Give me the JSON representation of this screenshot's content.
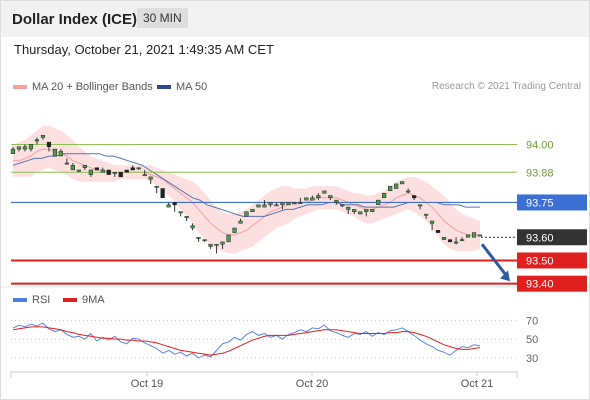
{
  "header": {
    "title": "Dollar Index (ICE)",
    "timeframe": "30 MIN"
  },
  "timestamp": "Thursday, October 21, 2021 1:49:35 AM CET",
  "legend": {
    "bollinger_label": "MA 20 + Bollinger Bands",
    "ma50_label": "MA 50",
    "research": "Research © 2021 Trading Central",
    "colors": {
      "bollinger": "#f08080",
      "ma50": "#2b4b8c"
    }
  },
  "rsi_legend": {
    "rsi_label": "RSI",
    "ma_label": "9MA",
    "colors": {
      "rsi": "#4f7fe0",
      "ma": "#e02020"
    }
  },
  "chart_data": {
    "type": "candlestick",
    "price_range": [
      93.39,
      94.17
    ],
    "x_labels": [
      "Oct 19",
      "Oct 20",
      "Oct 21"
    ],
    "candles": [
      [
        93.96,
        93.96,
        93.98,
        93.99
      ],
      [
        93.98,
        93.97,
        93.99,
        93.98
      ],
      [
        93.98,
        93.97,
        93.99,
        94.0
      ],
      [
        93.98,
        93.97,
        94.0,
        93.99
      ],
      [
        94.02,
        94.0,
        94.02,
        94.03
      ],
      [
        94.03,
        94.02,
        94.04,
        94.03
      ],
      [
        94.01,
        93.97,
        93.99,
        94.01
      ],
      [
        93.95,
        93.96,
        93.98,
        93.97
      ],
      [
        93.95,
        93.95,
        93.97,
        93.98
      ],
      [
        93.92,
        93.93,
        93.92,
        93.94
      ],
      [
        93.89,
        93.9,
        93.91,
        93.92
      ],
      [
        93.89,
        93.88,
        93.89,
        93.89
      ],
      [
        93.9,
        93.89,
        93.91,
        93.89
      ],
      [
        93.87,
        93.86,
        93.89,
        93.88
      ],
      [
        93.9,
        93.89,
        93.89,
        93.89
      ],
      [
        93.88,
        93.88,
        93.89,
        93.9
      ],
      [
        93.89,
        93.88,
        93.87,
        93.89
      ],
      [
        93.88,
        93.86,
        93.88,
        93.88
      ],
      [
        93.88,
        93.86,
        93.86,
        93.88
      ],
      [
        93.89,
        93.89,
        93.88,
        93.89
      ],
      [
        93.9,
        93.91,
        93.89,
        93.9
      ],
      [
        93.9,
        93.89,
        93.9,
        93.89
      ],
      [
        93.87,
        93.87,
        93.87,
        93.89
      ],
      [
        93.85,
        93.83,
        93.86,
        93.85
      ],
      [
        93.82,
        93.79,
        93.82,
        93.8
      ],
      [
        93.81,
        93.78,
        93.77,
        93.79
      ],
      [
        93.73,
        93.73,
        93.74,
        93.75
      ],
      [
        93.75,
        93.71,
        93.74,
        93.72
      ],
      [
        93.71,
        93.69,
        93.71,
        93.7
      ],
      [
        93.69,
        93.67,
        93.69,
        93.68
      ],
      [
        93.64,
        93.63,
        93.65,
        93.66
      ],
      [
        93.6,
        93.58,
        93.6,
        93.6
      ],
      [
        93.59,
        93.58,
        93.59,
        93.58
      ],
      [
        93.56,
        93.55,
        93.57,
        93.57
      ],
      [
        93.57,
        93.53,
        93.57,
        93.56
      ],
      [
        93.57,
        93.55,
        93.58,
        93.56
      ],
      [
        93.58,
        93.59,
        93.61,
        93.6
      ],
      [
        93.62,
        93.63,
        93.64,
        93.63
      ],
      [
        93.66,
        93.67,
        93.67,
        93.68
      ],
      [
        93.69,
        93.69,
        93.71,
        93.7
      ],
      [
        93.71,
        93.71,
        93.72,
        93.72
      ],
      [
        93.73,
        93.73,
        93.74,
        93.74
      ],
      [
        93.73,
        93.74,
        93.74,
        93.76
      ],
      [
        93.74,
        93.73,
        93.75,
        93.74
      ],
      [
        93.74,
        93.74,
        93.74,
        93.75
      ],
      [
        93.74,
        93.72,
        93.75,
        93.73
      ],
      [
        93.74,
        93.74,
        93.75,
        93.74
      ],
      [
        93.75,
        93.75,
        93.75,
        93.75
      ],
      [
        93.75,
        93.75,
        93.75,
        93.77
      ],
      [
        93.76,
        93.76,
        93.77,
        93.77
      ],
      [
        93.76,
        93.76,
        93.77,
        93.78
      ],
      [
        93.77,
        93.76,
        93.78,
        93.79
      ],
      [
        93.79,
        93.8,
        93.8,
        93.8
      ],
      [
        93.77,
        93.76,
        93.78,
        93.78
      ],
      [
        93.75,
        93.74,
        93.76,
        93.76
      ],
      [
        93.74,
        93.73,
        93.74,
        93.74
      ],
      [
        93.72,
        93.7,
        93.73,
        93.71
      ],
      [
        93.71,
        93.7,
        93.72,
        93.71
      ],
      [
        93.7,
        93.7,
        93.71,
        93.71
      ],
      [
        93.71,
        93.69,
        93.72,
        93.7
      ],
      [
        93.71,
        93.71,
        93.72,
        93.72
      ],
      [
        93.74,
        93.76,
        93.76,
        93.76
      ],
      [
        93.77,
        93.79,
        93.79,
        93.78
      ],
      [
        93.8,
        93.8,
        93.82,
        93.81
      ],
      [
        93.81,
        93.82,
        93.83,
        93.82
      ],
      [
        93.83,
        93.83,
        93.84,
        93.84
      ],
      [
        93.8,
        93.79,
        93.8,
        93.81
      ],
      [
        93.78,
        93.76,
        93.77,
        93.78
      ],
      [
        93.74,
        93.72,
        93.74,
        93.73
      ],
      [
        93.7,
        93.68,
        93.7,
        93.7
      ],
      [
        93.66,
        93.63,
        93.67,
        93.66
      ],
      [
        93.63,
        93.62,
        93.62,
        93.63
      ],
      [
        93.59,
        93.59,
        93.6,
        93.6
      ],
      [
        93.59,
        93.59,
        93.58,
        93.59
      ],
      [
        93.58,
        93.57,
        93.58,
        93.6
      ],
      [
        93.59,
        93.59,
        93.59,
        93.6
      ],
      [
        93.6,
        93.6,
        93.61,
        93.61
      ],
      [
        93.6,
        93.61,
        93.62,
        93.62
      ],
      [
        93.61,
        93.61,
        93.61,
        93.61
      ]
    ],
    "bollinger": {
      "mid": [
        93.93,
        93.93,
        93.94,
        93.95,
        93.97,
        93.98,
        93.98,
        93.97,
        93.96,
        93.95,
        93.93,
        93.92,
        93.91,
        93.9,
        93.89,
        93.89,
        93.88,
        93.88,
        93.88,
        93.88,
        93.88,
        93.88,
        93.88,
        93.87,
        93.86,
        93.85,
        93.83,
        93.81,
        93.79,
        93.77,
        93.75,
        93.72,
        93.69,
        93.66,
        93.64,
        93.62,
        93.61,
        93.61,
        93.62,
        93.63,
        93.65,
        93.67,
        93.69,
        93.71,
        93.72,
        93.73,
        93.74,
        93.74,
        93.75,
        93.75,
        93.76,
        93.77,
        93.77,
        93.77,
        93.77,
        93.76,
        93.75,
        93.74,
        93.73,
        93.72,
        93.72,
        93.73,
        93.74,
        93.75,
        93.77,
        93.78,
        93.79,
        93.78,
        93.77,
        93.75,
        93.73,
        93.7,
        93.67,
        93.65,
        93.63,
        93.62,
        93.61,
        93.61,
        93.61
      ],
      "upper": [
        94.0,
        94.01,
        94.02,
        94.04,
        94.06,
        94.08,
        94.08,
        94.07,
        94.06,
        94.04,
        94.02,
        93.99,
        93.97,
        93.95,
        93.94,
        93.93,
        93.92,
        93.91,
        93.91,
        93.91,
        93.91,
        93.91,
        93.91,
        93.91,
        93.9,
        93.89,
        93.88,
        93.87,
        93.86,
        93.85,
        93.84,
        93.82,
        93.79,
        93.76,
        93.73,
        93.71,
        93.7,
        93.7,
        93.71,
        93.72,
        93.74,
        93.76,
        93.78,
        93.8,
        93.81,
        93.82,
        93.82,
        93.81,
        93.81,
        93.81,
        93.82,
        93.82,
        93.82,
        93.82,
        93.82,
        93.81,
        93.8,
        93.79,
        93.79,
        93.78,
        93.78,
        93.79,
        93.8,
        93.82,
        93.84,
        93.85,
        93.86,
        93.86,
        93.85,
        93.84,
        93.82,
        93.8,
        93.78,
        93.75,
        93.72,
        93.7,
        93.69,
        93.68,
        93.67
      ],
      "lower": [
        93.86,
        93.86,
        93.86,
        93.86,
        93.88,
        93.89,
        93.9,
        93.89,
        93.88,
        93.87,
        93.85,
        93.84,
        93.84,
        93.84,
        93.84,
        93.84,
        93.84,
        93.84,
        93.85,
        93.85,
        93.85,
        93.85,
        93.85,
        93.84,
        93.82,
        93.8,
        93.78,
        93.75,
        93.72,
        93.69,
        93.66,
        93.62,
        93.59,
        93.56,
        93.55,
        93.54,
        93.53,
        93.53,
        93.54,
        93.55,
        93.56,
        93.58,
        93.6,
        93.62,
        93.64,
        93.65,
        93.66,
        93.68,
        93.69,
        93.7,
        93.71,
        93.72,
        93.72,
        93.72,
        93.72,
        93.71,
        93.7,
        93.69,
        93.67,
        93.66,
        93.66,
        93.67,
        93.68,
        93.69,
        93.7,
        93.71,
        93.72,
        93.71,
        93.69,
        93.67,
        93.64,
        93.6,
        93.57,
        93.55,
        93.54,
        93.54,
        93.54,
        93.54,
        93.55
      ]
    },
    "ma50": [
      93.91,
      93.92,
      93.93,
      93.94,
      93.94,
      93.95,
      93.95,
      93.96,
      93.96,
      93.96,
      93.96,
      93.96,
      93.96,
      93.95,
      93.95,
      93.94,
      93.93,
      93.92,
      93.91,
      93.89,
      93.87,
      93.85,
      93.83,
      93.81,
      93.79,
      93.77,
      93.76,
      93.74,
      93.73,
      93.72,
      93.71,
      93.7,
      93.69,
      93.69,
      93.69,
      93.69,
      93.7,
      93.71,
      93.72,
      93.72,
      93.73,
      93.74,
      93.74,
      93.74,
      93.75,
      93.75,
      93.74,
      93.74,
      93.74,
      93.73,
      93.73,
      93.73,
      93.73,
      93.73,
      93.74,
      93.75,
      93.75,
      93.75,
      93.75,
      93.75,
      93.74,
      93.74,
      93.74,
      93.73,
      93.73,
      93.73
    ],
    "levels": [
      {
        "value": 94.0,
        "label": "94.00",
        "kind": "resistance-thin",
        "color": "#8fbf55"
      },
      {
        "value": 93.88,
        "label": "93.88",
        "kind": "resistance-thin",
        "color": "#8fbf55"
      },
      {
        "value": 93.75,
        "label": "93.75",
        "kind": "pivot",
        "color": "#3b6fd4"
      },
      {
        "value": 93.5,
        "label": "93.50",
        "kind": "support",
        "color": "#e01f1f"
      },
      {
        "value": 93.4,
        "label": "93.40",
        "kind": "support",
        "color": "#e01f1f"
      }
    ],
    "last_price": {
      "value": 93.6,
      "label": "93.60"
    },
    "rsi": {
      "range": [
        16,
        80
      ],
      "ticks": [
        70,
        50,
        30
      ],
      "rsi": [
        62,
        65,
        63,
        66,
        64,
        67,
        61,
        58,
        60,
        55,
        52,
        53,
        50,
        56,
        48,
        52,
        49,
        53,
        47,
        45,
        51,
        50,
        46,
        43,
        40,
        35,
        38,
        34,
        36,
        32,
        35,
        30,
        33,
        31,
        38,
        45,
        47,
        52,
        49,
        55,
        58,
        54,
        56,
        52,
        54,
        50,
        55,
        57,
        60,
        58,
        62,
        61,
        65,
        59,
        57,
        54,
        52,
        56,
        55,
        58,
        53,
        57,
        55,
        59,
        60,
        62,
        58,
        54,
        49,
        45,
        42,
        38,
        36,
        33,
        38,
        42,
        41,
        44,
        43
      ],
      "ma9": [
        60,
        61,
        62,
        63,
        63,
        63,
        62,
        61,
        60,
        58,
        57,
        55,
        54,
        53,
        52,
        51,
        51,
        50,
        50,
        49,
        49,
        48,
        48,
        47,
        46,
        44,
        42,
        40,
        38,
        37,
        36,
        35,
        34,
        33,
        34,
        35,
        37,
        40,
        43,
        46,
        49,
        51,
        53,
        54,
        54,
        54,
        54,
        55,
        56,
        57,
        58,
        59,
        60,
        60,
        60,
        59,
        58,
        57,
        56,
        56,
        56,
        56,
        56,
        57,
        57,
        58,
        58,
        57,
        55,
        53,
        50,
        47,
        44,
        42,
        40,
        39,
        39,
        40,
        41
      ]
    },
    "forecast_arrow": {
      "from": 93.57,
      "to": 93.41
    }
  }
}
